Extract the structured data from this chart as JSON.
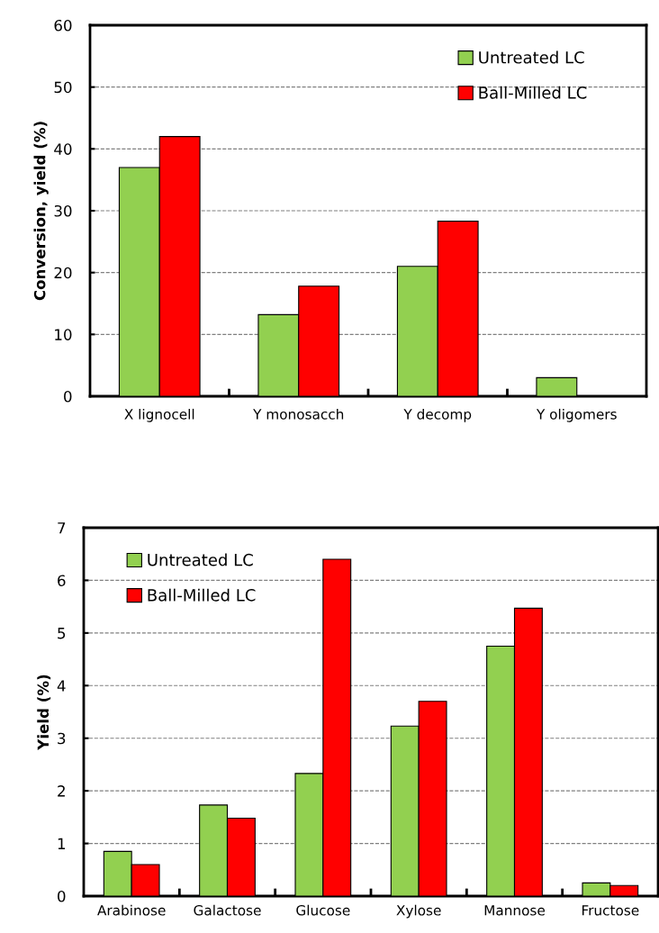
{
  "chart_data": [
    {
      "type": "bar",
      "ylabel": "Conversion, yield (%)",
      "categories": [
        "X lignocell",
        "Y monosacch",
        "Y decomp",
        "Y oligomers"
      ],
      "series": [
        {
          "name": "Untreated LC",
          "color": "#92d050",
          "values": [
            37,
            13.2,
            21,
            3
          ]
        },
        {
          "name": "Ball-Milled LC",
          "color": "#ff0000",
          "values": [
            42,
            17.8,
            28.3,
            null
          ]
        }
      ],
      "ylim": [
        0,
        60
      ],
      "yticks": [
        0,
        10,
        20,
        30,
        40,
        50,
        60
      ],
      "grid": "y",
      "legend": "top right"
    },
    {
      "type": "bar",
      "ylabel": "Yield (%)",
      "categories": [
        "Arabinose",
        "Galactose",
        "Glucose",
        "Xylose",
        "Mannose",
        "Fructose"
      ],
      "series": [
        {
          "name": "Untreated LC",
          "color": "#92d050",
          "values": [
            0.85,
            1.73,
            2.33,
            3.23,
            4.75,
            0.25
          ]
        },
        {
          "name": "Ball-Milled LC",
          "color": "#ff0000",
          "values": [
            0.6,
            1.48,
            6.4,
            3.7,
            5.47,
            0.2
          ]
        }
      ],
      "ylim": [
        0,
        7
      ],
      "yticks": [
        0,
        1,
        2,
        3,
        4,
        5,
        6,
        7
      ],
      "grid": "y",
      "legend": "top left"
    }
  ]
}
